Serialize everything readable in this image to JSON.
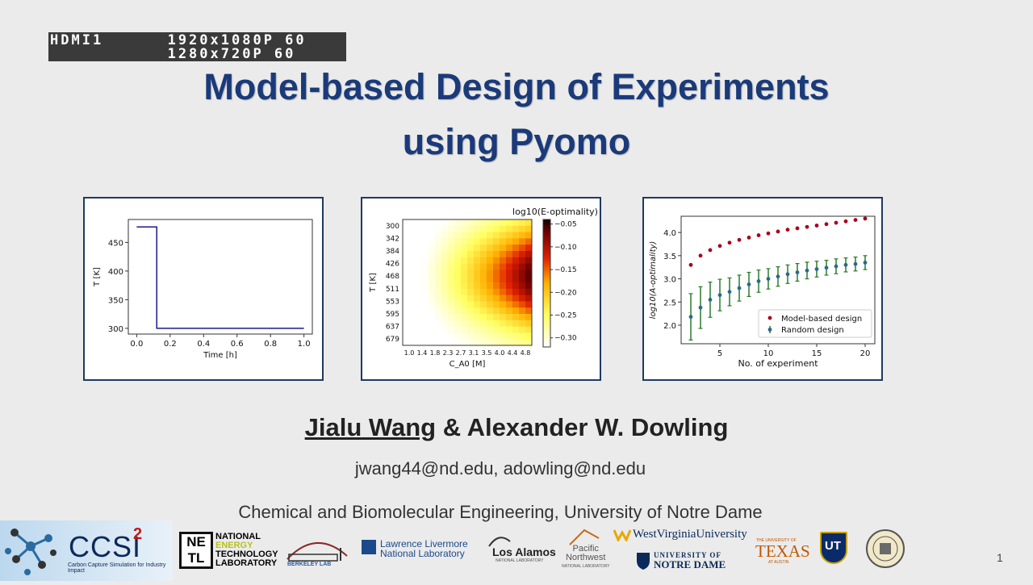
{
  "hdmi": {
    "line1": "HDMI1      1920x1080P 60",
    "line2": "           1280x720P 60"
  },
  "title": {
    "line1": "Model-based Design of Experiments",
    "line2": "using Pyomo"
  },
  "authors": {
    "first": "Jialu Wang",
    "sep": " & ",
    "second": "Alexander W. Dowling"
  },
  "email": "jwang44@nd.edu, adowling@nd.edu",
  "affiliation": "Chemical and Biomolecular Engineering, University of Notre Dame",
  "page_number": "1",
  "logos": {
    "ccsi": "CCSI",
    "ccsi_sup": "2",
    "ccsi_sub": "Carbon Capture Simulation for Industry Impact",
    "netl": [
      "NATIONAL",
      "ENERGY",
      "TECHNOLOGY",
      "LABORATORY"
    ],
    "berkeley": "BERKELEY LAB",
    "llnl": [
      "Lawrence Livermore",
      "National Laboratory"
    ],
    "lanl": "Los Alamos",
    "lanl_sub": "NATIONAL LABORATORY",
    "pnnl": [
      "Pacific",
      "Northwest"
    ],
    "pnnl_sub": "NATIONAL LABORATORY",
    "wvu": "WestVirginiaUniversity",
    "nd": [
      "UNIVERSITY OF",
      "NOTRE DAME"
    ],
    "texas_top": "THE UNIVERSITY OF",
    "texas": "TEXAS",
    "texas_sub": "AT AUSTIN",
    "ut": "UT"
  },
  "chart_data": [
    {
      "type": "line",
      "xlabel": "Time [h]",
      "ylabel": "T [K]",
      "x": [
        0.0,
        0.12,
        0.12,
        1.0
      ],
      "y": [
        477,
        477,
        300,
        300
      ],
      "xticks": [
        "0.0",
        "0.2",
        "0.4",
        "0.6",
        "0.8",
        "1.0"
      ],
      "yticks": [
        "300",
        "350",
        "400",
        "450"
      ],
      "xlim": [
        -0.05,
        1.05
      ],
      "ylim": [
        290,
        490
      ],
      "color": "#1a1a8a"
    },
    {
      "type": "heatmap",
      "title": "log10(E-optimality)",
      "xlabel": "C_A0 [M]",
      "ylabel": "T [K]",
      "xticks": [
        "1.0",
        "1.4",
        "1.8",
        "2.3",
        "2.7",
        "3.1",
        "3.5",
        "4.0",
        "4.4",
        "4.8"
      ],
      "yticks": [
        "300",
        "342",
        "384",
        "426",
        "468",
        "511",
        "553",
        "595",
        "637",
        "679"
      ],
      "colorbar_ticks": [
        "-0.05",
        "-0.10",
        "-0.15",
        "-0.20",
        "-0.25",
        "-0.30"
      ],
      "colorbar_range": [
        -0.32,
        -0.04
      ]
    },
    {
      "type": "scatter",
      "xlabel": "No. of experiment",
      "ylabel": "log10(A-optimality)",
      "xticks": [
        "5",
        "10",
        "15",
        "20"
      ],
      "yticks": [
        "2.0",
        "2.5",
        "3.0",
        "3.5",
        "4.0"
      ],
      "xlim": [
        1,
        21
      ],
      "ylim": [
        1.6,
        4.35
      ],
      "series": [
        {
          "name": "Model-based design",
          "color": "#a8001a",
          "x": [
            2,
            3,
            4,
            5,
            6,
            7,
            8,
            9,
            10,
            11,
            12,
            13,
            14,
            15,
            16,
            17,
            18,
            19,
            20
          ],
          "y": [
            3.3,
            3.5,
            3.62,
            3.71,
            3.78,
            3.84,
            3.89,
            3.94,
            3.98,
            4.02,
            4.06,
            4.09,
            4.12,
            4.15,
            4.18,
            4.21,
            4.24,
            4.27,
            4.3
          ]
        },
        {
          "name": "Random design",
          "color": "#2a6a8a",
          "errcolor": "#2a7a2a",
          "x": [
            2,
            3,
            4,
            5,
            6,
            7,
            8,
            9,
            10,
            11,
            12,
            13,
            14,
            15,
            16,
            17,
            18,
            19,
            20
          ],
          "y": [
            2.18,
            2.38,
            2.55,
            2.65,
            2.72,
            2.8,
            2.88,
            2.95,
            3.0,
            3.05,
            3.1,
            3.14,
            3.18,
            3.21,
            3.24,
            3.27,
            3.3,
            3.32,
            3.35
          ],
          "err": [
            0.5,
            0.45,
            0.38,
            0.34,
            0.3,
            0.28,
            0.26,
            0.24,
            0.22,
            0.21,
            0.2,
            0.19,
            0.18,
            0.17,
            0.16,
            0.16,
            0.15,
            0.15,
            0.15
          ]
        }
      ]
    }
  ]
}
